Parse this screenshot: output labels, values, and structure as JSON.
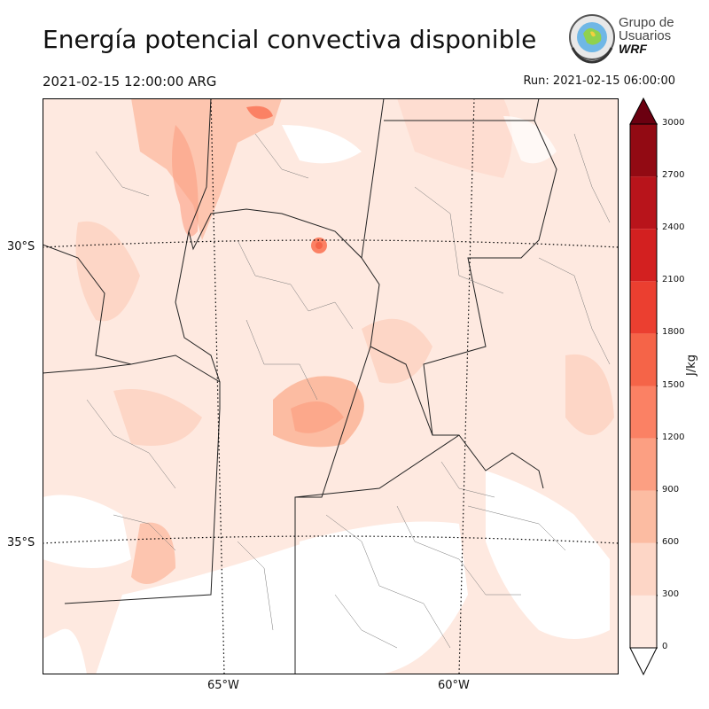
{
  "header": {
    "title": "Energía potencial convectiva disponible",
    "valid_time": "2021-02-15 12:00:00 ARG",
    "run_time": "Run: 2021-02-15 06:00:00"
  },
  "logo": {
    "line1": "Grupo de",
    "line2": "Usuarios",
    "line3": "WRF"
  },
  "map": {
    "lat_labels": [
      "30°S",
      "35°S"
    ],
    "lon_labels": [
      "65°W",
      "60°W"
    ]
  },
  "colorbar": {
    "unit": "J/kg",
    "ticks": [
      "0",
      "300",
      "600",
      "900",
      "1200",
      "1500",
      "1800",
      "2100",
      "2400",
      "2700",
      "3000"
    ],
    "colors": [
      "#fee9e0",
      "#fdd6c6",
      "#fcbca2",
      "#fc9f82",
      "#fb8164",
      "#f56448",
      "#eb3f30",
      "#d32020",
      "#b8141b",
      "#920a13",
      "#6b0010"
    ]
  }
}
